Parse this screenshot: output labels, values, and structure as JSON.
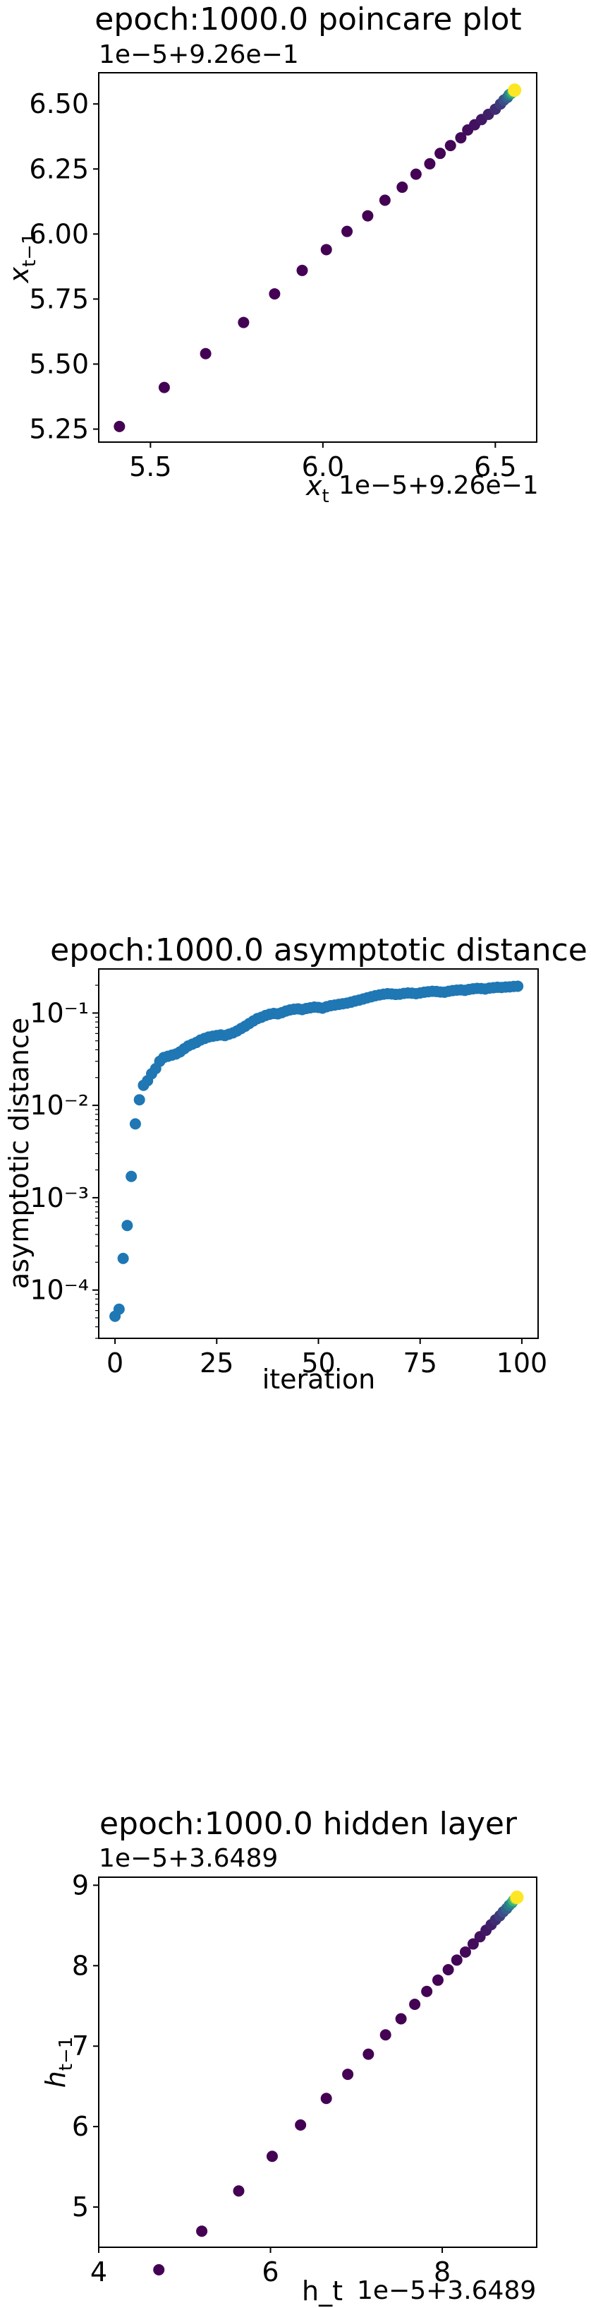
{
  "chart_data": [
    {
      "type": "scatter",
      "title": "epoch:1000.0 poincare plot",
      "offset_text_y": "1e−5+9.26e−1",
      "offset_text_x": "1e−5+9.26e−1",
      "xlabel": "x_t",
      "ylabel": "x_{t−1}",
      "xlim": [
        5.35,
        6.62
      ],
      "ylim": [
        5.2,
        6.62
      ],
      "xticks": [
        5.5,
        6.0,
        6.5
      ],
      "xtick_labels": [
        "5.5",
        "6.0",
        "6.5"
      ],
      "yticks": [
        5.25,
        5.5,
        5.75,
        6.0,
        6.25,
        6.5
      ],
      "ytick_labels": [
        "5.25",
        "5.50",
        "5.75",
        "6.00",
        "6.25",
        "6.50"
      ],
      "colormap": [
        "#440154",
        "#3b528b",
        "#21918c",
        "#5ec962",
        "#fde725"
      ],
      "x": [
        5.41,
        5.54,
        5.66,
        5.77,
        5.86,
        5.94,
        6.01,
        6.07,
        6.13,
        6.18,
        6.23,
        6.27,
        6.31,
        6.34,
        6.37,
        6.4,
        6.42,
        6.44,
        6.46,
        6.48,
        6.5,
        6.515,
        6.525,
        6.535,
        6.54,
        6.545,
        6.55,
        6.553,
        6.556
      ],
      "y": [
        5.26,
        5.41,
        5.54,
        5.66,
        5.77,
        5.86,
        5.94,
        6.01,
        6.07,
        6.13,
        6.18,
        6.23,
        6.27,
        6.31,
        6.34,
        6.37,
        6.4,
        6.42,
        6.44,
        6.46,
        6.48,
        6.5,
        6.515,
        6.525,
        6.535,
        6.54,
        6.545,
        6.55,
        6.553
      ]
    },
    {
      "type": "scatter",
      "title": "epoch:1000.0 asymptotic distance",
      "xlabel": "iteration",
      "ylabel": "asymptotic distance",
      "yscale": "log",
      "xlim": [
        -4,
        104
      ],
      "ylim": [
        3e-05,
        0.3
      ],
      "xticks": [
        0,
        25,
        50,
        75,
        100
      ],
      "xtick_labels": [
        "0",
        "25",
        "50",
        "75",
        "100"
      ],
      "yticks": [
        0.0001,
        0.001,
        0.01,
        0.1
      ],
      "ytick_labels": [
        "10⁻⁴",
        "10⁻³",
        "10⁻²",
        "10⁻¹"
      ],
      "color": "#1f77b4",
      "x": [
        0,
        1,
        2,
        3,
        4,
        5,
        6,
        7,
        8,
        9,
        10,
        11,
        12,
        13,
        14,
        15,
        16,
        17,
        18,
        19,
        20,
        21,
        22,
        23,
        24,
        25,
        26,
        27,
        28,
        29,
        30,
        31,
        32,
        33,
        34,
        35,
        36,
        37,
        38,
        39,
        40,
        41,
        42,
        43,
        44,
        45,
        46,
        47,
        48,
        49,
        50,
        51,
        52,
        53,
        54,
        55,
        56,
        57,
        58,
        59,
        60,
        61,
        62,
        63,
        64,
        65,
        66,
        67,
        68,
        69,
        70,
        71,
        72,
        73,
        74,
        75,
        76,
        77,
        78,
        79,
        80,
        81,
        82,
        83,
        84,
        85,
        86,
        87,
        88,
        89,
        90,
        91,
        92,
        93,
        94,
        95,
        96,
        97,
        98,
        99
      ],
      "y": [
        5.2e-05,
        6.2e-05,
        0.00022,
        0.0005,
        0.0017,
        0.0063,
        0.0115,
        0.0165,
        0.0185,
        0.022,
        0.025,
        0.03,
        0.033,
        0.034,
        0.035,
        0.036,
        0.038,
        0.041,
        0.044,
        0.046,
        0.048,
        0.051,
        0.053,
        0.055,
        0.056,
        0.057,
        0.058,
        0.057,
        0.059,
        0.061,
        0.064,
        0.068,
        0.072,
        0.077,
        0.082,
        0.087,
        0.09,
        0.094,
        0.097,
        0.099,
        0.098,
        0.101,
        0.105,
        0.108,
        0.11,
        0.111,
        0.109,
        0.112,
        0.114,
        0.116,
        0.115,
        0.113,
        0.117,
        0.12,
        0.122,
        0.124,
        0.126,
        0.128,
        0.131,
        0.135,
        0.138,
        0.142,
        0.146,
        0.15,
        0.154,
        0.157,
        0.16,
        0.162,
        0.161,
        0.159,
        0.16,
        0.163,
        0.165,
        0.164,
        0.162,
        0.165,
        0.168,
        0.17,
        0.172,
        0.171,
        0.169,
        0.168,
        0.172,
        0.175,
        0.177,
        0.178,
        0.176,
        0.18,
        0.183,
        0.185,
        0.184,
        0.182,
        0.186,
        0.188,
        0.19,
        0.189,
        0.191,
        0.192,
        0.194,
        0.195
      ]
    },
    {
      "type": "scatter",
      "title": "epoch:1000.0 hidden layer",
      "offset_text_y": "1e−5+3.6489",
      "offset_text_x": "1e−5+3.6489",
      "xlabel": "h_t",
      "ylabel": "h_{t−1}",
      "xlim": [
        4.0,
        9.1
      ],
      "ylim": [
        4.5,
        9.1
      ],
      "xticks": [
        4,
        6,
        8
      ],
      "xtick_labels": [
        "4",
        "6",
        "8"
      ],
      "yticks": [
        5,
        6,
        7,
        8,
        9
      ],
      "ytick_labels": [
        "5",
        "6",
        "7",
        "8",
        "9"
      ],
      "colormap": [
        "#440154",
        "#3b528b",
        "#21918c",
        "#5ec962",
        "#fde725"
      ],
      "x": [
        4.7,
        5.2,
        5.63,
        6.02,
        6.35,
        6.65,
        6.9,
        7.14,
        7.34,
        7.52,
        7.68,
        7.82,
        7.95,
        8.07,
        8.17,
        8.27,
        8.36,
        8.44,
        8.51,
        8.57,
        8.62,
        8.67,
        8.71,
        8.75,
        8.78,
        8.81,
        8.83,
        8.85,
        8.87
      ],
      "y": [
        4.22,
        4.7,
        5.2,
        5.63,
        6.02,
        6.35,
        6.65,
        6.9,
        7.14,
        7.34,
        7.52,
        7.68,
        7.82,
        7.95,
        8.07,
        8.17,
        8.27,
        8.36,
        8.44,
        8.51,
        8.57,
        8.62,
        8.67,
        8.71,
        8.75,
        8.78,
        8.81,
        8.83,
        8.85
      ]
    }
  ]
}
